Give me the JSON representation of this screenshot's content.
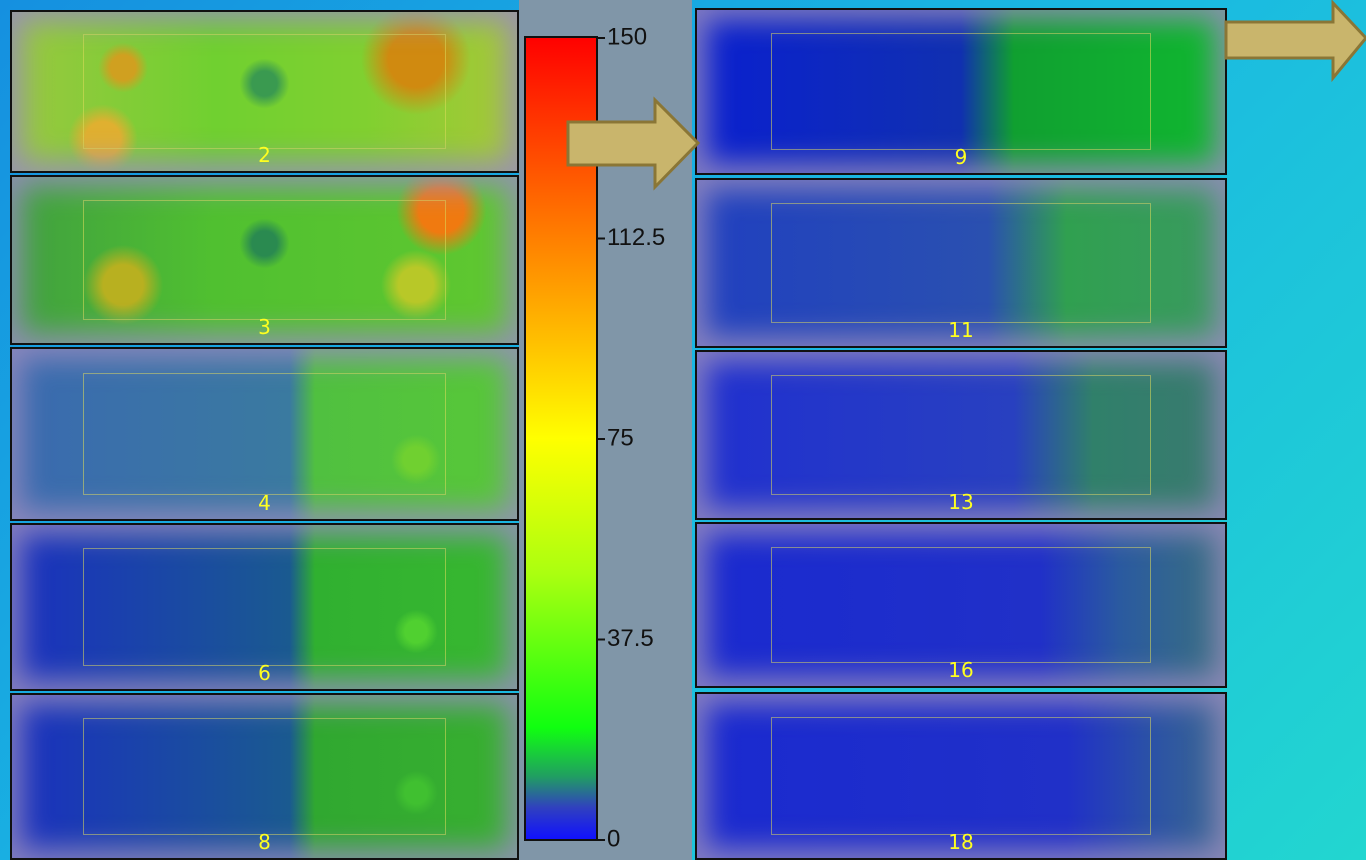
{
  "colorbar": {
    "lim": [
      0,
      150
    ],
    "ticks": [
      150,
      112.5,
      75,
      37.5,
      0
    ]
  },
  "panels_left": [
    "2",
    "3",
    "4",
    "6",
    "8"
  ],
  "panels_right": [
    "9",
    "11",
    "13",
    "16",
    "18"
  ]
}
